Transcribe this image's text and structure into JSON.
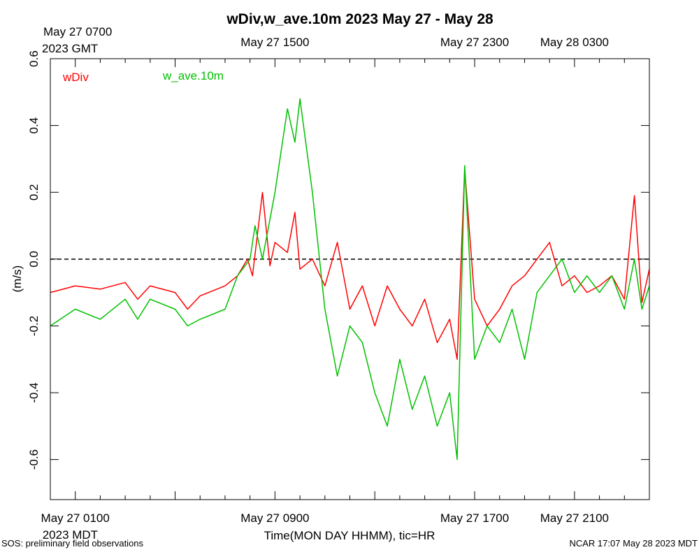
{
  "chart_data": {
    "type": "line",
    "title": "wDiv,w_ave.10m 2023 May 27 - May 28",
    "xlabel": "Time(MON DAY HHMM), tic=HR",
    "ylabel": "(m/s)",
    "ylim": [
      -0.72,
      0.6
    ],
    "yticks": [
      -0.6,
      -0.4,
      -0.2,
      0.0,
      0.2,
      0.4,
      0.6
    ],
    "ytick_labels": [
      "-0.6",
      "-0.4",
      "-0.2",
      "0.0",
      "0.2",
      "0.4",
      "0.6"
    ],
    "x_unit": "hours since May 27 0000 MDT",
    "xlim": [
      0,
      24
    ],
    "x_bottom_labels": [
      {
        "x": 1,
        "text": "May 27 0100"
      },
      {
        "x": 9,
        "text": "May 27 0900"
      },
      {
        "x": 17,
        "text": "May 27 1700"
      },
      {
        "x": 21,
        "text": "May 27 2100"
      }
    ],
    "x_bottom_sublabel": {
      "x": 1,
      "text": "2023 MDT"
    },
    "x_top_labels": [
      {
        "x": 9,
        "text": "May 27 1500"
      },
      {
        "x": 17,
        "text": "May 27 2300"
      },
      {
        "x": 21,
        "text": "May 28 0300"
      }
    ],
    "x_top_corner": {
      "line1": "May 27 0700",
      "line2": "2023 GMT"
    },
    "zero_line": 0.0,
    "grid": false,
    "legend": "top-left",
    "footer_left": "SOS: preliminary field observations",
    "footer_right": "NCAR 17:07 May 28 2023 MDT",
    "series": [
      {
        "name": "wDiv",
        "color": "#ff0000",
        "x": [
          0.0,
          1.0,
          2.0,
          3.0,
          3.5,
          4.0,
          5.0,
          5.5,
          6.0,
          7.0,
          7.5,
          7.9,
          8.1,
          8.5,
          8.8,
          9.0,
          9.5,
          9.8,
          10.0,
          10.5,
          11.0,
          11.5,
          12.0,
          12.5,
          13.0,
          13.5,
          14.0,
          14.5,
          15.0,
          15.5,
          16.0,
          16.3,
          16.6,
          17.0,
          17.5,
          18.0,
          18.5,
          19.0,
          19.5,
          20.0,
          20.5,
          21.0,
          21.5,
          22.0,
          22.5,
          23.0,
          23.4,
          23.7,
          24.0
        ],
        "y": [
          -0.1,
          -0.08,
          -0.09,
          -0.07,
          -0.12,
          -0.08,
          -0.1,
          -0.15,
          -0.11,
          -0.08,
          -0.05,
          0.0,
          -0.05,
          0.2,
          -0.02,
          0.05,
          0.02,
          0.14,
          -0.03,
          0.0,
          -0.08,
          0.05,
          -0.15,
          -0.08,
          -0.2,
          -0.08,
          -0.15,
          -0.2,
          -0.12,
          -0.25,
          -0.18,
          -0.3,
          0.27,
          -0.12,
          -0.2,
          -0.15,
          -0.08,
          -0.05,
          0.0,
          0.05,
          -0.08,
          -0.05,
          -0.1,
          -0.08,
          -0.05,
          -0.12,
          0.19,
          -0.13,
          -0.03
        ]
      },
      {
        "name": "w_ave.10m",
        "color": "#00c000",
        "x": [
          0.0,
          1.0,
          2.0,
          3.0,
          3.5,
          4.0,
          5.0,
          5.5,
          6.0,
          7.0,
          7.5,
          8.0,
          8.2,
          8.5,
          9.0,
          9.5,
          9.8,
          10.0,
          10.5,
          11.0,
          11.5,
          12.0,
          12.5,
          13.0,
          13.5,
          14.0,
          14.5,
          15.0,
          15.5,
          16.0,
          16.3,
          16.6,
          17.0,
          17.5,
          18.0,
          18.5,
          19.0,
          19.5,
          20.0,
          20.5,
          21.0,
          21.5,
          22.0,
          22.5,
          23.0,
          23.4,
          23.7,
          24.0
        ],
        "y": [
          -0.2,
          -0.15,
          -0.18,
          -0.12,
          -0.18,
          -0.12,
          -0.15,
          -0.2,
          -0.18,
          -0.15,
          -0.05,
          0.0,
          0.1,
          0.0,
          0.2,
          0.45,
          0.35,
          0.48,
          0.2,
          -0.15,
          -0.35,
          -0.2,
          -0.25,
          -0.4,
          -0.5,
          -0.3,
          -0.45,
          -0.35,
          -0.5,
          -0.4,
          -0.6,
          0.28,
          -0.3,
          -0.2,
          -0.25,
          -0.15,
          -0.3,
          -0.1,
          -0.05,
          0.0,
          -0.1,
          -0.05,
          -0.1,
          -0.05,
          -0.15,
          0.0,
          -0.15,
          -0.08
        ]
      }
    ]
  }
}
